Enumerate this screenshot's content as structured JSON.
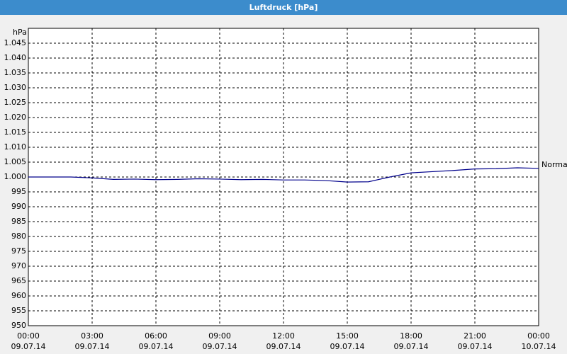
{
  "chart_data": {
    "type": "line",
    "title": "Luftdruck [hPa]",
    "y_label": "hPa",
    "annotation": "Normal",
    "x": [
      0,
      1,
      2,
      3,
      4,
      5,
      6,
      7,
      8,
      9,
      10,
      11,
      12,
      13,
      14,
      15,
      16,
      17,
      18,
      19,
      20,
      21,
      22,
      23,
      24
    ],
    "series": [
      {
        "name": "Luftdruck",
        "color": "#00008b",
        "values": [
          1000,
          1000,
          1000,
          999.7,
          999.2,
          999.3,
          999.1,
          999.2,
          999.4,
          999.3,
          999.1,
          999.2,
          999,
          999,
          998.8,
          998.3,
          998.4,
          1000,
          1001.4,
          1001.8,
          1002.2,
          1002.7,
          1002.8,
          1003.1,
          1002.9
        ]
      }
    ],
    "xlim": [
      0,
      24
    ],
    "xticks": [
      {
        "value": 0,
        "label": "00:00",
        "date": "09.07.14"
      },
      {
        "value": 3,
        "label": "03:00",
        "date": "09.07.14"
      },
      {
        "value": 6,
        "label": "06:00",
        "date": "09.07.14"
      },
      {
        "value": 9,
        "label": "09:00",
        "date": "09.07.14"
      },
      {
        "value": 12,
        "label": "12:00",
        "date": "09.07.14"
      },
      {
        "value": 15,
        "label": "15:00",
        "date": "09.07.14"
      },
      {
        "value": 18,
        "label": "18:00",
        "date": "09.07.14"
      },
      {
        "value": 21,
        "label": "21:00",
        "date": "09.07.14"
      },
      {
        "value": 24,
        "label": "00:00",
        "date": "10.07.14"
      }
    ],
    "ylim": [
      950,
      1050
    ],
    "yticks": [
      950,
      955,
      960,
      965,
      970,
      975,
      980,
      985,
      990,
      995,
      {
        "value": 1000,
        "label": "1.000"
      },
      {
        "value": 1005,
        "label": "1.005"
      },
      {
        "value": 1010,
        "label": "1.010"
      },
      {
        "value": 1015,
        "label": "1.015"
      },
      {
        "value": 1020,
        "label": "1.020"
      },
      {
        "value": 1025,
        "label": "1.025"
      },
      {
        "value": 1030,
        "label": "1.030"
      },
      {
        "value": 1035,
        "label": "1.035"
      },
      {
        "value": 1040,
        "label": "1.040"
      },
      {
        "value": 1045,
        "label": "1.045"
      }
    ],
    "grid": true
  }
}
